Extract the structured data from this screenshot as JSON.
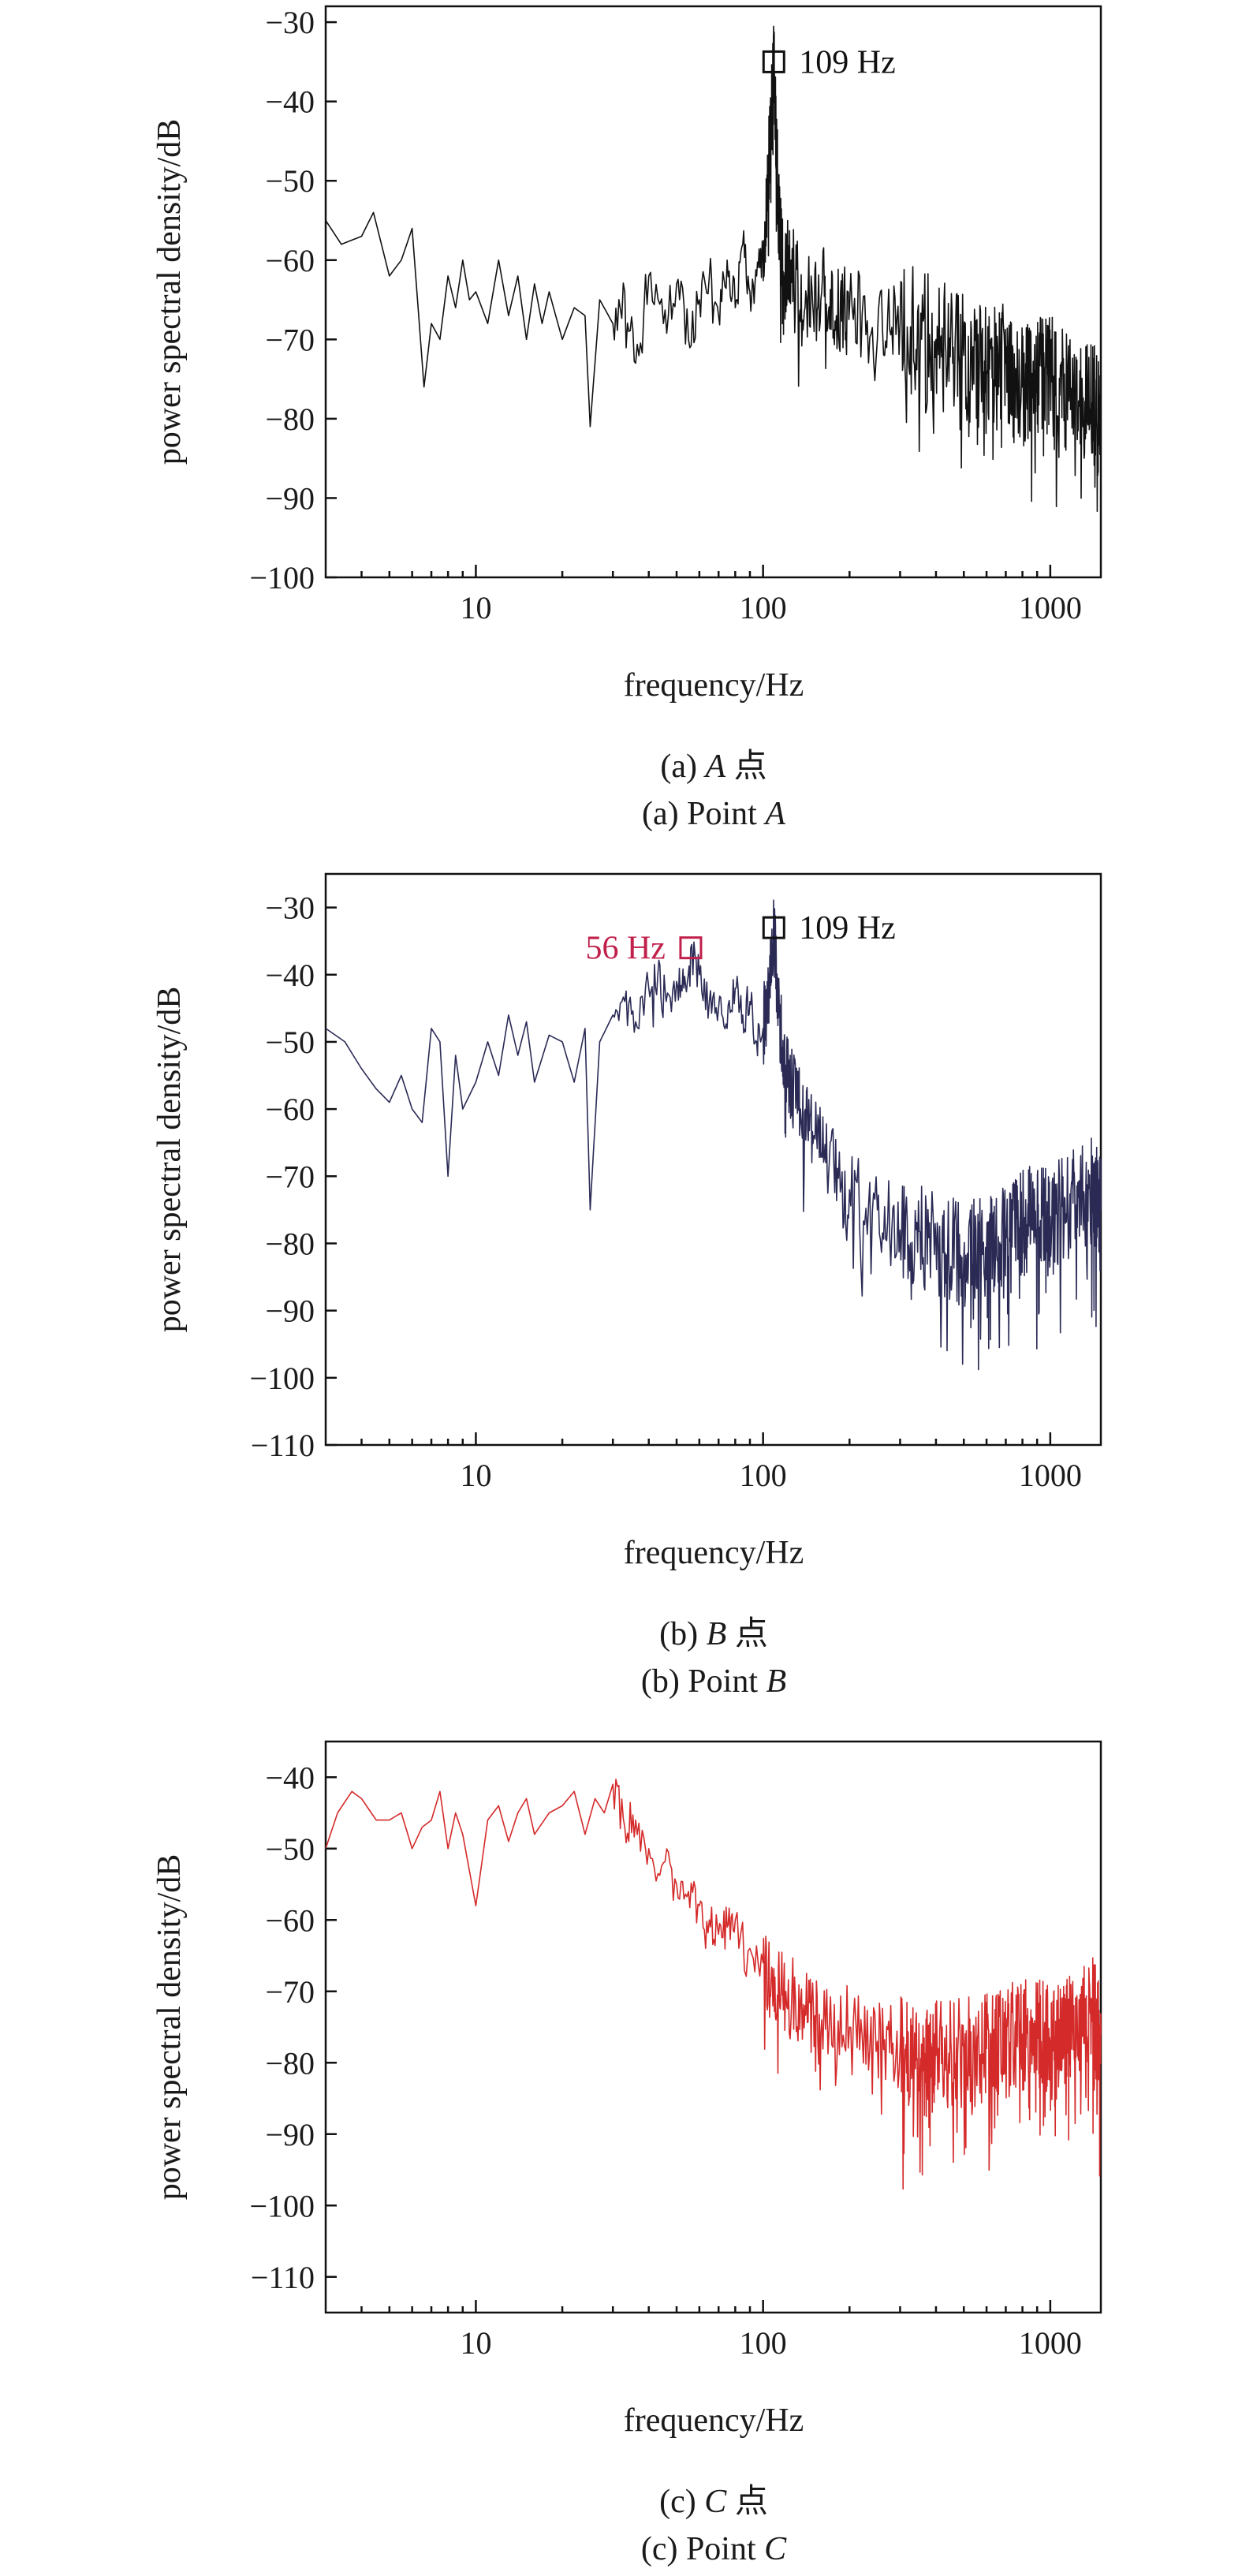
{
  "chart_data": [
    {
      "type": "line",
      "caption_cn": "(a) A 点",
      "caption_en": "(a) Point A",
      "caption_cn_parts": [
        "(a) ",
        "A",
        " 点"
      ],
      "caption_en_parts": [
        "(a) Point ",
        "A"
      ],
      "xlabel": "frequency/Hz",
      "ylabel": "power spectral density/dB",
      "xscale": "log",
      "xlim": [
        3,
        1500
      ],
      "ylim": [
        -100,
        -28
      ],
      "x_ticks": [
        10,
        100,
        1000
      ],
      "x_tick_labels": [
        "10",
        "100",
        "1000"
      ],
      "y_ticks": [
        -100,
        -90,
        -80,
        -70,
        -60,
        -50,
        -40,
        -30
      ],
      "y_tick_labels": [
        "−100",
        "−90",
        "−80",
        "−70",
        "−60",
        "−50",
        "−40",
        "−30"
      ],
      "grid": false,
      "series": [
        {
          "color": "#111111",
          "x": [
            3,
            3.4,
            4,
            4.4,
            5,
            5.5,
            6,
            6.6,
            7,
            7.5,
            8,
            8.5,
            9,
            9.5,
            10,
            11,
            12,
            13,
            14,
            15,
            16,
            17,
            18,
            20,
            22,
            24,
            25,
            27,
            30,
            33,
            36,
            40,
            45,
            50,
            55,
            60,
            65,
            70,
            75,
            80,
            85,
            90,
            95,
            100,
            104,
            107,
            109,
            111,
            114,
            118,
            125,
            140,
            160,
            180,
            200,
            250,
            300,
            400,
            500,
            600,
            700,
            800,
            900,
            1000,
            1200,
            1400,
            1500
          ],
          "y": [
            -55,
            -58,
            -57,
            -54,
            -62,
            -60,
            -56,
            -76,
            -68,
            -70,
            -62,
            -66,
            -60,
            -65,
            -64,
            -68,
            -60,
            -67,
            -62,
            -70,
            -63,
            -68,
            -64,
            -70,
            -66,
            -67,
            -81,
            -65,
            -68,
            -64,
            -73,
            -62,
            -68,
            -63,
            -70,
            -65,
            -62,
            -67,
            -60,
            -66,
            -58,
            -64,
            -62,
            -60,
            -50,
            -42,
            -35,
            -45,
            -56,
            -62,
            -60,
            -66,
            -64,
            -67,
            -66,
            -70,
            -68,
            -70,
            -72,
            -74,
            -73,
            -76,
            -74,
            -75,
            -77,
            -78,
            -80
          ]
        }
      ],
      "annotations": [
        {
          "x": 109,
          "y": -35,
          "label": "109 Hz",
          "color": "#111111"
        }
      ]
    },
    {
      "type": "line",
      "caption_cn": "(b) B 点",
      "caption_en": "(b) Point B",
      "caption_cn_parts": [
        "(b) ",
        "B",
        " 点"
      ],
      "caption_en_parts": [
        "(b) Point ",
        "B"
      ],
      "xlabel": "frequency/Hz",
      "ylabel": "power spectral density/dB",
      "xscale": "log",
      "xlim": [
        3,
        1500
      ],
      "ylim": [
        -110,
        -25
      ],
      "x_ticks": [
        10,
        100,
        1000
      ],
      "x_tick_labels": [
        "10",
        "100",
        "1000"
      ],
      "y_ticks": [
        -110,
        -100,
        -90,
        -80,
        -70,
        -60,
        -50,
        -40,
        -30
      ],
      "y_tick_labels": [
        "−110",
        "−100",
        "−90",
        "−80",
        "−70",
        "−60",
        "−50",
        "−40",
        "−30"
      ],
      "grid": false,
      "series": [
        {
          "color": "#2a2a55",
          "x": [
            3,
            3.5,
            4,
            4.5,
            5,
            5.5,
            6,
            6.5,
            7,
            7.5,
            8,
            8.5,
            9,
            10,
            11,
            12,
            13,
            14,
            15,
            16,
            18,
            20,
            22,
            24,
            25,
            27,
            30,
            33,
            36,
            40,
            43,
            46,
            50,
            53,
            56,
            60,
            65,
            70,
            75,
            80,
            85,
            90,
            95,
            100,
            105,
            109,
            113,
            118,
            125,
            135,
            150,
            170,
            200,
            250,
            300,
            400,
            500,
            600,
            700,
            800,
            900,
            1000,
            1200,
            1400,
            1500
          ],
          "y": [
            -48,
            -50,
            -54,
            -57,
            -59,
            -55,
            -60,
            -62,
            -48,
            -50,
            -70,
            -52,
            -60,
            -56,
            -50,
            -55,
            -46,
            -52,
            -47,
            -56,
            -49,
            -50,
            -56,
            -48,
            -75,
            -50,
            -46,
            -44,
            -47,
            -42,
            -40,
            -44,
            -41,
            -42,
            -36,
            -40,
            -44,
            -45,
            -48,
            -42,
            -46,
            -44,
            -50,
            -48,
            -42,
            -33,
            -45,
            -52,
            -56,
            -60,
            -64,
            -68,
            -72,
            -75,
            -78,
            -80,
            -82,
            -80,
            -78,
            -77,
            -76,
            -76,
            -74,
            -72,
            -75
          ]
        }
      ],
      "annotations": [
        {
          "x": 56,
          "y": -36,
          "label": "56 Hz",
          "color": "#c0204a"
        },
        {
          "x": 109,
          "y": -33,
          "label": "109 Hz",
          "color": "#111111"
        }
      ]
    },
    {
      "type": "line",
      "caption_cn": "(c) C 点",
      "caption_en": "(c) Point C",
      "caption_cn_parts": [
        "(c) ",
        "C",
        " 点"
      ],
      "caption_en_parts": [
        "(c) Point ",
        "C"
      ],
      "xlabel": "frequency/Hz",
      "ylabel": "power spectral density/dB",
      "xscale": "log",
      "xlim": [
        3,
        1500
      ],
      "ylim": [
        -115,
        -35
      ],
      "x_ticks": [
        10,
        100,
        1000
      ],
      "x_tick_labels": [
        "10",
        "100",
        "1000"
      ],
      "y_ticks": [
        -110,
        -100,
        -90,
        -80,
        -70,
        -60,
        -50,
        -40
      ],
      "y_tick_labels": [
        "−110",
        "−100",
        "−90",
        "−80",
        "−70",
        "−60",
        "−50",
        "−40"
      ],
      "grid": false,
      "series": [
        {
          "color": "#d42a2a",
          "x": [
            3,
            3.3,
            3.7,
            4,
            4.5,
            5,
            5.5,
            6,
            6.5,
            7,
            7.5,
            8,
            8.5,
            9,
            10,
            11,
            12,
            13,
            14,
            15,
            16,
            18,
            20,
            22,
            24,
            26,
            28,
            30,
            33,
            36,
            40,
            45,
            50,
            55,
            60,
            65,
            70,
            75,
            80,
            90,
            100,
            110,
            120,
            140,
            160,
            200,
            250,
            300,
            350,
            400,
            500,
            600,
            700,
            800,
            900,
            1000,
            1100,
            1200,
            1400,
            1500
          ],
          "y": [
            -50,
            -45,
            -42,
            -43,
            -46,
            -46,
            -45,
            -50,
            -47,
            -46,
            -42,
            -50,
            -45,
            -48,
            -58,
            -46,
            -44,
            -49,
            -45,
            -43,
            -48,
            -45,
            -44,
            -42,
            -48,
            -43,
            -45,
            -41,
            -47,
            -46,
            -50,
            -52,
            -55,
            -56,
            -58,
            -60,
            -62,
            -61,
            -60,
            -64,
            -66,
            -68,
            -70,
            -72,
            -74,
            -75,
            -77,
            -78,
            -80,
            -79,
            -79,
            -78,
            -77,
            -76,
            -75,
            -77,
            -74,
            -75,
            -73,
            -76
          ]
        }
      ],
      "annotations": []
    }
  ]
}
